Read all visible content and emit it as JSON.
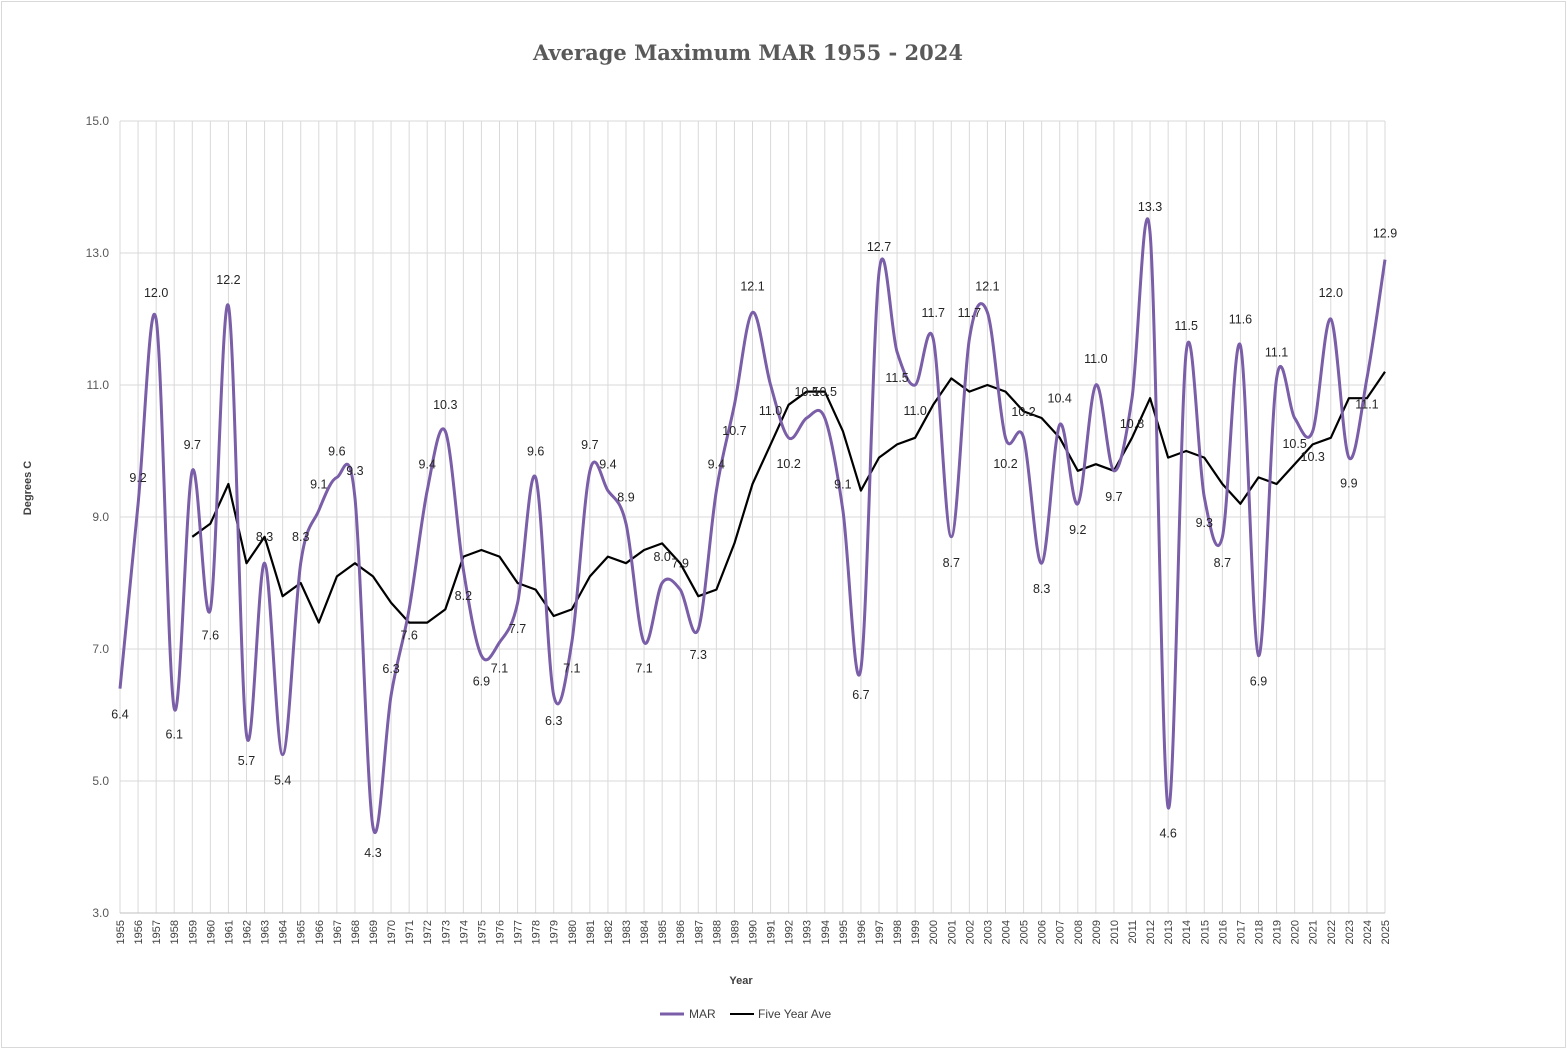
{
  "chart_data": {
    "type": "line",
    "title": "Average Maximum MAR 1955 - 2024",
    "xlabel": "Year",
    "ylabel": "Degrees C",
    "ylim": [
      3.0,
      15.0
    ],
    "yticks": [
      "3.0",
      "5.0",
      "7.0",
      "9.0",
      "11.0",
      "13.0",
      "15.0"
    ],
    "x": [
      "1955",
      "1956",
      "1957",
      "1958",
      "1959",
      "1960",
      "1961",
      "1962",
      "1963",
      "1964",
      "1965",
      "1966",
      "1967",
      "1968",
      "1969",
      "1970",
      "1971",
      "1972",
      "1973",
      "1974",
      "1975",
      "1976",
      "1977",
      "1978",
      "1979",
      "1980",
      "1981",
      "1982",
      "1983",
      "1984",
      "1985",
      "1986",
      "1987",
      "1988",
      "1989",
      "1990",
      "1991",
      "1992",
      "1993",
      "1994",
      "1995",
      "1996",
      "1997",
      "1998",
      "1999",
      "2000",
      "2001",
      "2002",
      "2003",
      "2004",
      "2005",
      "2006",
      "2007",
      "2008",
      "2009",
      "2010",
      "2011",
      "2012",
      "2013",
      "2014",
      "2015",
      "2016",
      "2017",
      "2018",
      "2019",
      "2020",
      "2021",
      "2022",
      "2023",
      "2024",
      "2025"
    ],
    "grid": true,
    "legend_position": "bottom",
    "colors": {
      "mar": "#7a5ea8",
      "five_year": "#000000",
      "grid": "#d9d9d9"
    },
    "series": [
      {
        "name": "MAR",
        "smooth": true,
        "values": [
          6.4,
          9.2,
          12.0,
          6.1,
          9.7,
          7.6,
          12.2,
          5.7,
          8.3,
          5.4,
          8.3,
          9.1,
          9.6,
          9.3,
          4.3,
          6.3,
          7.6,
          9.4,
          10.3,
          8.2,
          6.9,
          7.1,
          7.7,
          9.6,
          6.3,
          7.1,
          9.7,
          9.4,
          8.9,
          7.1,
          8.0,
          7.9,
          7.3,
          9.4,
          10.7,
          12.1,
          11.0,
          10.2,
          10.5,
          10.5,
          9.1,
          6.7,
          12.7,
          11.5,
          11.0,
          11.7,
          8.7,
          11.7,
          12.1,
          10.2,
          10.2,
          8.3,
          10.4,
          9.2,
          11.0,
          9.7,
          10.8,
          13.3,
          4.6,
          11.5,
          9.3,
          8.7,
          11.6,
          6.9,
          11.1,
          10.5,
          10.3,
          12.0,
          9.9,
          11.1,
          12.9
        ],
        "labels": [
          "6.4",
          "9.2",
          "12.0",
          "6.1",
          "9.7",
          "7.6",
          "12.2",
          "5.7",
          "8.3",
          "5.4",
          "8.3",
          "9.1",
          "9.6",
          "9.3",
          "4.3",
          "6.3",
          "7.6",
          "9.4",
          "10.3",
          "8.2",
          "6.9",
          "7.1",
          "7.7",
          "9.6",
          "6.3",
          "7.1",
          "9.7",
          "9.4",
          "8.9",
          "7.1",
          "8.0",
          "7.9",
          "7.3",
          "9.4",
          "10.7",
          "12.1",
          "11.0",
          "10.2",
          "10.5",
          "10.5",
          "9.1",
          "6.7",
          "12.7",
          "11.5",
          "11.0",
          "11.7",
          "8.7",
          "11.7",
          "12.1",
          "10.2",
          "10.2",
          "8.3",
          "10.4",
          "9.2",
          "11.0",
          "9.7",
          "10.8",
          "13.3",
          "4.6",
          "11.5",
          "9.3",
          "8.7",
          "11.6",
          "6.9",
          "11.1",
          "10.5",
          "10.3",
          "12.0",
          "9.9",
          "11.1",
          "12.9"
        ]
      },
      {
        "name": "Five Year Ave",
        "smooth": false,
        "values": [
          null,
          null,
          null,
          null,
          8.7,
          8.9,
          9.5,
          8.3,
          8.7,
          7.8,
          8.0,
          7.4,
          8.1,
          8.3,
          8.1,
          7.7,
          7.4,
          7.4,
          7.6,
          8.4,
          8.5,
          8.4,
          8.0,
          7.9,
          7.5,
          7.6,
          8.1,
          8.4,
          8.3,
          8.5,
          8.6,
          8.3,
          7.8,
          7.9,
          8.6,
          9.5,
          10.1,
          10.7,
          10.9,
          10.9,
          10.3,
          9.4,
          9.9,
          10.1,
          10.2,
          10.7,
          11.1,
          10.9,
          11.0,
          10.9,
          10.6,
          10.5,
          10.2,
          9.7,
          9.8,
          9.7,
          10.2,
          10.8,
          9.9,
          10.0,
          9.9,
          9.5,
          9.2,
          9.6,
          9.5,
          9.8,
          10.1,
          10.2,
          10.8,
          10.8,
          11.2
        ]
      }
    ]
  }
}
